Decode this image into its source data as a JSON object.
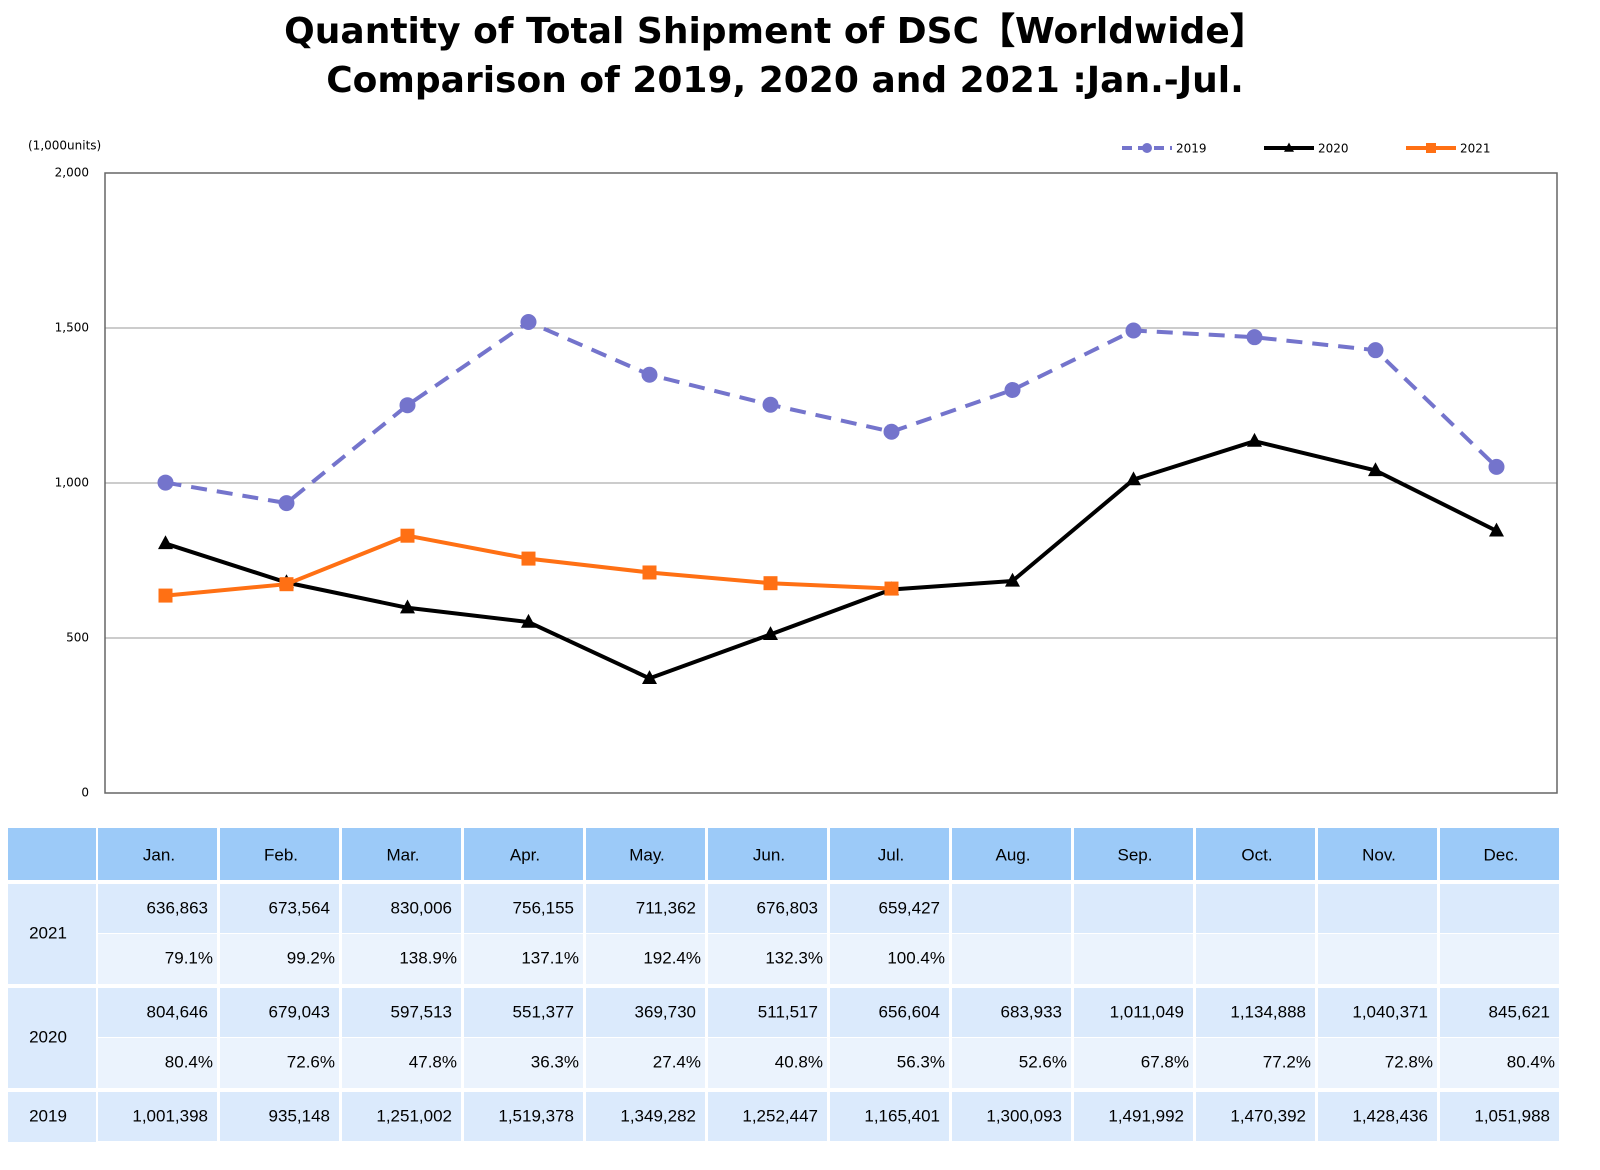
{
  "chart_data": {
    "type": "line",
    "title": "Quantity of Total Shipment of DSC【Worldwide】",
    "subtitle": "Comparison of 2019, 2020 and 2021 :Jan.-Jul.",
    "y_label": "(1,000units)",
    "categories": [
      "Jan.",
      "Feb.",
      "Mar.",
      "Apr.",
      "May.",
      "Jun.",
      "Jul.",
      "Aug.",
      "Sep.",
      "Oct.",
      "Nov.",
      "Dec."
    ],
    "ylim": [
      0,
      2000
    ],
    "yticks": [
      0,
      500,
      {
        "value": 1000,
        "label": "1,000"
      },
      {
        "value": 1500,
        "label": "1,500"
      },
      {
        "value": 2000,
        "label": "2,000"
      }
    ],
    "grid": true,
    "legend": "top-right",
    "series": [
      {
        "name": "2019",
        "color": "#7474cc",
        "dash": true,
        "marker": "circle",
        "values": [
          1001.398,
          935.148,
          1251.002,
          1519.378,
          1349.282,
          1252.447,
          1165.401,
          1300.093,
          1491.992,
          1470.392,
          1428.436,
          1051.988
        ],
        "value_labels": [
          "1,001,398",
          "935,148",
          "1,251,002",
          "1,519,378",
          "1,349,282",
          "1,252,447",
          "1,165,401",
          "1,300,093",
          "1,491,992",
          "1,470,392",
          "1,428,436",
          "1,051,988"
        ]
      },
      {
        "name": "2020",
        "color": "#000000",
        "dash": false,
        "marker": "triangle",
        "values": [
          804.646,
          679.043,
          597.513,
          551.377,
          369.73,
          511.517,
          656.604,
          683.933,
          1011.049,
          1134.888,
          1040.371,
          845.621
        ],
        "value_labels": [
          "804,646",
          "679,043",
          "597,513",
          "551,377",
          "369,730",
          "511,517",
          "656,604",
          "683,933",
          "1,011,049",
          "1,134,888",
          "1,040,371",
          "845,621"
        ],
        "ratio_labels": [
          "80.4%",
          "72.6%",
          "47.8%",
          "36.3%",
          "27.4%",
          "40.8%",
          "56.3%",
          "52.6%",
          "67.8%",
          "77.2%",
          "72.8%",
          "80.4%"
        ]
      },
      {
        "name": "2021",
        "color": "#ff7014",
        "dash": false,
        "marker": "square",
        "values": [
          636.863,
          673.564,
          830.006,
          756.155,
          711.362,
          676.803,
          659.427,
          null,
          null,
          null,
          null,
          null
        ],
        "value_labels": [
          "636,863",
          "673,564",
          "830,006",
          "756,155",
          "711,362",
          "676,803",
          "659,427",
          null,
          null,
          null,
          null,
          null
        ],
        "ratio_labels": [
          "79.1%",
          "99.2%",
          "138.9%",
          "137.1%",
          "192.4%",
          "132.3%",
          "100.4%",
          null,
          null,
          null,
          null,
          null
        ]
      }
    ]
  }
}
